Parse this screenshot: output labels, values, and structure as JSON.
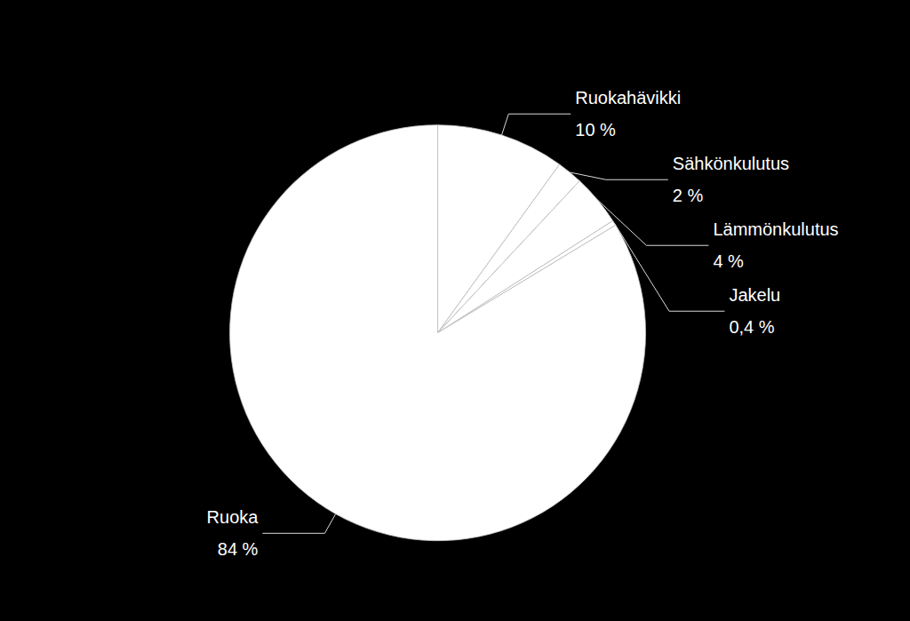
{
  "chart_data": {
    "type": "pie",
    "categories": [
      "Ruokahävikki",
      "Sähkönkulutus",
      "Lämmönkulutus",
      "Jakelu",
      "Ruoka"
    ],
    "values": [
      10,
      2,
      4,
      0.4,
      84
    ],
    "value_labels": [
      "10 %",
      "2 %",
      "4 %",
      "0,4 %",
      "84 %"
    ],
    "data_labels": true,
    "color": "#ffffff"
  }
}
